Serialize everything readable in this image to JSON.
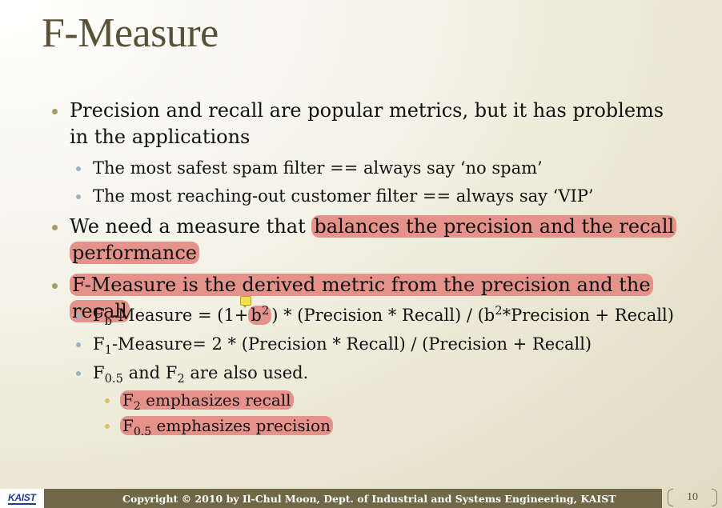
{
  "slide": {
    "title": "F-Measure",
    "bullets": {
      "b1_text": "Precision and recall are popular metrics, but it has problems in the applications",
      "b1_sub1": "The most safest spam filter == always say ‘no spam’",
      "b1_sub2": "The most reaching-out customer filter == always say ‘VIP’",
      "b2_pre": "We need a measure that",
      "b2_hl": "balances the precision and the recall performance",
      "b3_hl": "F-Measure is the derived metric from the precision and the recall",
      "fb_F": "F",
      "fb_sub": "b",
      "fb_pre": "-Measure = (1+",
      "fb_b": "b",
      "fb_sup": "2",
      "fb_mid": ") * (Precision * Recall) / (b",
      "fb_sup2": "2",
      "fb_end": "*Precision + Recall)",
      "f1_F": "F",
      "f1_sub": "1",
      "f1_rest": "-Measure= 2 * (Precision * Recall) / (Precision + Recall)",
      "f05_F": "F",
      "f05_sub": "0.5",
      "f05_and": " and F",
      "f05_sub2": "2",
      "f05_rest": " are also used.",
      "f2_F": "F",
      "f2_sub": "2",
      "f2_rest": " emphasizes recall",
      "f05b_F": "F",
      "f05b_sub": "0.5",
      "f05b_rest": " emphasizes precision"
    }
  },
  "footer": {
    "logo": "KAIST",
    "copyright": "Copyright © 2010 by Il-Chul Moon, Dept. of Industrial and Systems Engineering, KAIST",
    "page_number": "10"
  },
  "colors": {
    "highlight": "#e5928b",
    "title": "#5a5138",
    "footer_bar": "#6f6745"
  }
}
